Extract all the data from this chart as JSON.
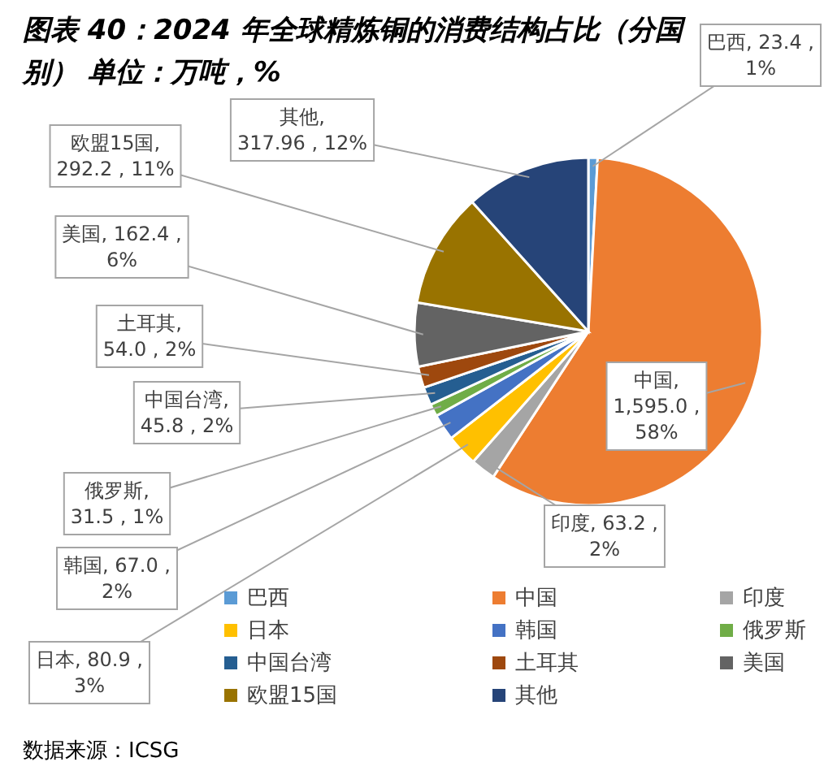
{
  "chart_data": {
    "type": "pie",
    "title": "图表 40：2024 年全球精炼铜的消费结构占比（分国别） 单位：万吨，%",
    "categories": [
      "巴西",
      "中国",
      "印度",
      "日本",
      "韩国",
      "俄罗斯",
      "中国台湾",
      "土耳其",
      "美国",
      "欧盟15国",
      "其他"
    ],
    "values": [
      23.4,
      1595.0,
      63.2,
      80.9,
      67.0,
      31.5,
      45.8,
      54.0,
      162.4,
      292.2,
      317.96
    ],
    "value_labels": [
      "巴西, 23.4 , 1%",
      "中国, 1,595.0 , 58%",
      "印度, 63.2 , 2%",
      "日本, 80.9 , 3%",
      "韩国, 67.0 , 2%",
      "俄罗斯, 31.5 , 1%",
      "中国台湾, 45.8 , 2%",
      "土耳其, 54.0 , 2%",
      "美国, 162.4 , 6%",
      "欧盟15国, 292.2 , 11%",
      "其他, 317.96 , 12%"
    ],
    "colors": [
      "#5b9bd5",
      "#ed7d31",
      "#a5a5a5",
      "#ffc000",
      "#4472c4",
      "#70ad47",
      "#255e91",
      "#9e480e",
      "#636363",
      "#997300",
      "#264478"
    ],
    "legend": "bottom",
    "annotations": [
      "数据来源：ICSG"
    ]
  }
}
